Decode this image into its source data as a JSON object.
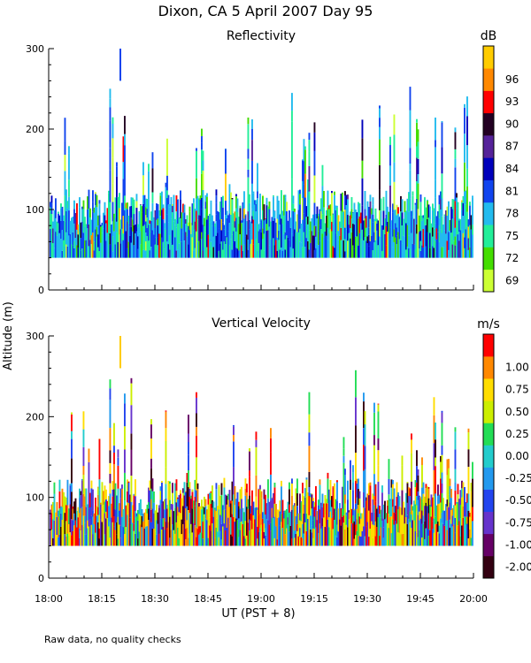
{
  "title": "Dixon, CA  5 April 2007  Day  95",
  "footnote": "Raw data, no quality checks",
  "chart_data": [
    {
      "type": "heatmap",
      "title": "Reflectivity",
      "colorbar_unit": "dB",
      "colorbar_ticks": [
        "69",
        "72",
        "75",
        "78",
        "81",
        "84",
        "87",
        "90",
        "93",
        "96"
      ],
      "colorbar_colors": [
        "#ccff33",
        "#44dd00",
        "#22ee99",
        "#22bbee",
        "#1144ee",
        "#0000bb",
        "#552299",
        "#220022",
        "#ff0000",
        "#ff8800",
        "#ffcc00"
      ],
      "xlabel": "UT  (PST + 8)",
      "ylabel": "Altitude (m)",
      "xticks": [
        "18:00",
        "18:15",
        "18:30",
        "18:45",
        "19:00",
        "19:15",
        "19:30",
        "19:45",
        "20:00"
      ],
      "yticks": [
        "0",
        "100",
        "200",
        "300"
      ],
      "ylim": [
        0,
        300
      ],
      "data_min_altitude_m": 40,
      "typical_top_altitude_m": 120,
      "max_echo_altitude_m": 300
    },
    {
      "type": "heatmap",
      "title": "Vertical Velocity",
      "colorbar_unit": "m/s",
      "colorbar_ticks": [
        "-2.00",
        "-1.00",
        "-0.75",
        "-0.50",
        "-0.25",
        "0.00",
        "0.25",
        "0.50",
        "0.75",
        "1.00"
      ],
      "colorbar_colors": [
        "#330011",
        "#660066",
        "#6633cc",
        "#2244ee",
        "#2299ee",
        "#22cccc",
        "#22dd55",
        "#ccee00",
        "#ffdd00",
        "#ff8800",
        "#ff0000"
      ],
      "xlabel": "UT  (PST + 8)",
      "ylabel": "Altitude (m)",
      "xticks": [
        "18:00",
        "18:15",
        "18:30",
        "18:45",
        "19:00",
        "19:15",
        "19:30",
        "19:45",
        "20:00"
      ],
      "yticks": [
        "0",
        "100",
        "200",
        "300"
      ],
      "ylim": [
        0,
        300
      ],
      "data_min_altitude_m": 40,
      "typical_top_altitude_m": 120,
      "max_echo_altitude_m": 300
    }
  ]
}
